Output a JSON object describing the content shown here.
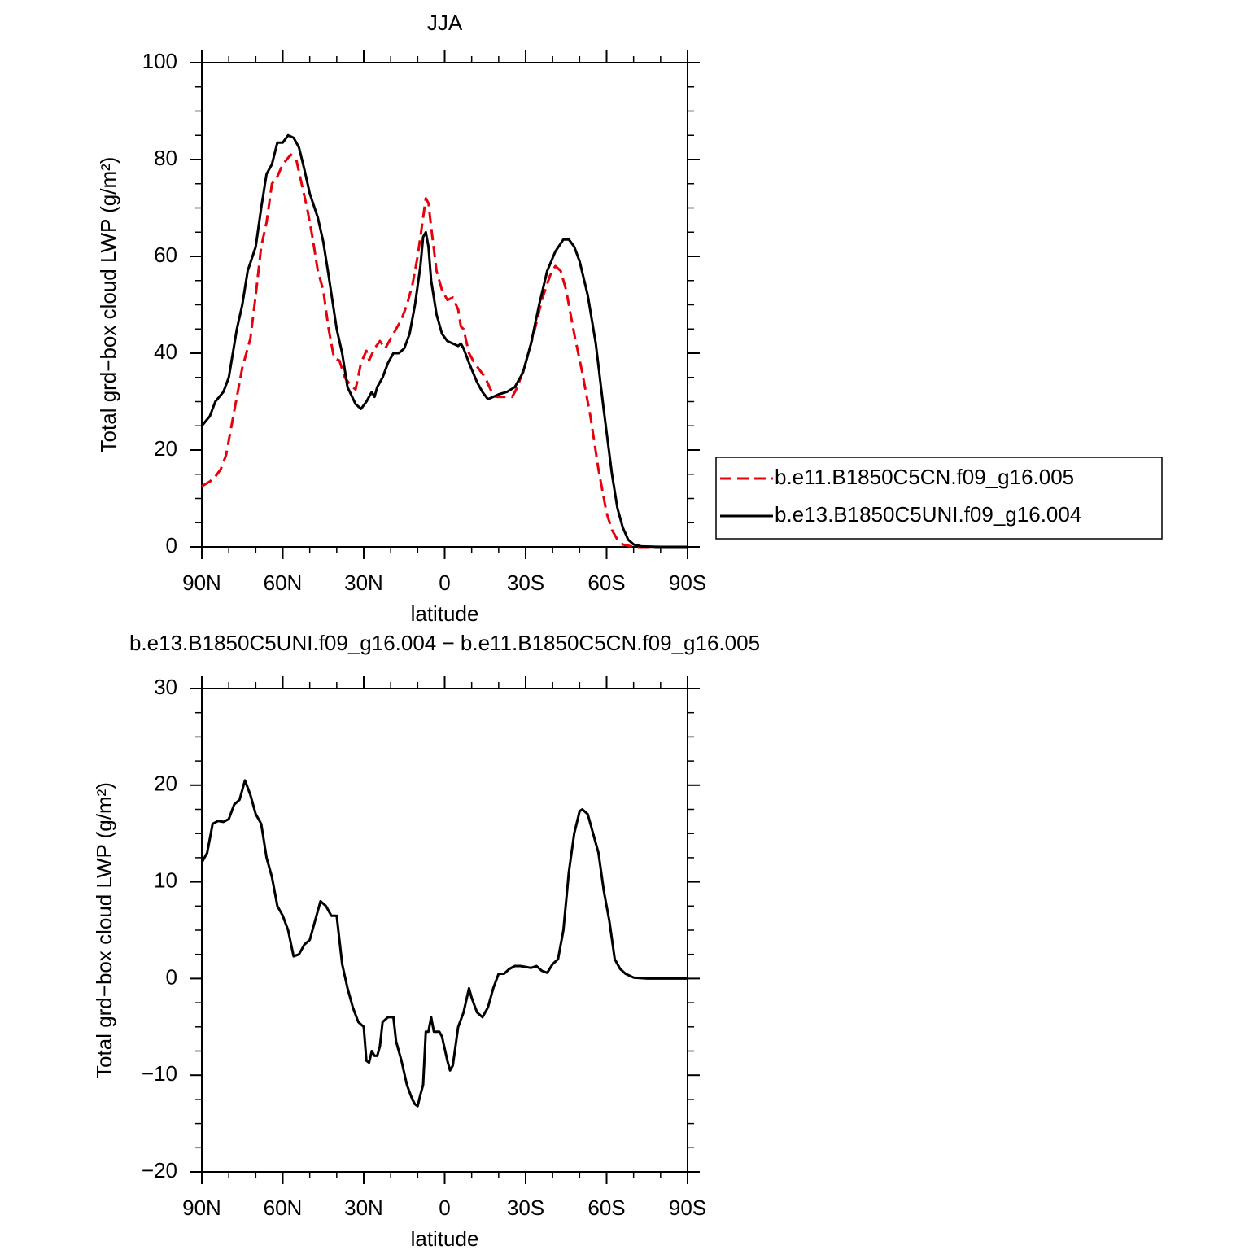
{
  "chart_data": [
    {
      "type": "line",
      "title": "JJA",
      "xlabel": "latitude",
      "ylabel": "Total grd−box cloud LWP (g/m²)",
      "xlim": [
        90,
        -90
      ],
      "xticks": [
        {
          "value": 90,
          "label": "90N"
        },
        {
          "value": 60,
          "label": "60N"
        },
        {
          "value": 30,
          "label": "30N"
        },
        0,
        {
          "value": -30,
          "label": "30S"
        },
        {
          "value": -60,
          "label": "60S"
        },
        {
          "value": -90,
          "label": "90S"
        }
      ],
      "ylim": [
        0,
        100
      ],
      "yticks": [
        0,
        20,
        40,
        60,
        80,
        100
      ],
      "legend": "right",
      "series": [
        {
          "name": "b.e11.B1850C5CN.f09_g16.005",
          "color": "#e8000b",
          "dash": true,
          "x": [
            90,
            87,
            85,
            83,
            81,
            79,
            77,
            75,
            72,
            70,
            68,
            66,
            64,
            62,
            60,
            57,
            55,
            53,
            51,
            49,
            47,
            45,
            43,
            41,
            39,
            37,
            35,
            33,
            31,
            29,
            28,
            26,
            24,
            22,
            20,
            18,
            16,
            14,
            12,
            10,
            8,
            7,
            6,
            5,
            3,
            1,
            -1,
            -3,
            -5,
            -6,
            -7,
            -9,
            -11,
            -13,
            -15,
            -17,
            -19,
            -22,
            -25,
            -27,
            -30,
            -33,
            -36,
            -39,
            -41,
            -43,
            -45,
            -48,
            -51,
            -54,
            -57,
            -60,
            -62,
            -64,
            -66,
            -70,
            -90
          ],
          "values": [
            12.5,
            13.5,
            14.5,
            16,
            19,
            25,
            31,
            37,
            43,
            52,
            62,
            67,
            75,
            76.5,
            79,
            81,
            80,
            75,
            70,
            64,
            57,
            53,
            45,
            39,
            38.5,
            35,
            33.5,
            32.5,
            38,
            40.5,
            38.5,
            41,
            42.5,
            41,
            43,
            45,
            47,
            50,
            54,
            60,
            68,
            72,
            71,
            66,
            57,
            53,
            51,
            51.5,
            49,
            45.5,
            45,
            40,
            38,
            36.5,
            35,
            32.5,
            31,
            31,
            31,
            33,
            38,
            44,
            51,
            56,
            58,
            57,
            53,
            44,
            36,
            27,
            16,
            7,
            3.5,
            1.5,
            0.5,
            0,
            0
          ]
        },
        {
          "name": "b.e13.B1850C5UNI.f09_g16.004",
          "color": "#000000",
          "dash": false,
          "x": [
            90,
            87,
            85,
            82,
            80,
            77,
            75,
            73,
            70,
            68,
            66,
            64,
            62,
            60,
            58,
            56,
            54,
            52,
            50,
            47,
            45,
            43,
            40,
            38,
            36,
            33,
            31,
            29,
            27,
            26,
            25,
            23,
            21,
            19,
            17,
            15,
            13,
            11,
            9,
            8,
            7,
            6,
            5,
            3,
            1,
            -1,
            -3,
            -5,
            -6,
            -7,
            -9,
            -12,
            -14,
            -16,
            -18,
            -20,
            -23,
            -26,
            -29,
            -32,
            -35,
            -38,
            -41,
            -44,
            -46,
            -48,
            -50,
            -53,
            -56,
            -59,
            -62,
            -64,
            -66,
            -68,
            -70,
            -73,
            -80,
            -90
          ],
          "values": [
            25,
            27,
            30,
            32,
            35,
            45,
            50,
            57,
            62,
            70,
            77,
            79,
            83.5,
            83.5,
            85,
            84.5,
            82.5,
            78,
            73,
            68,
            63,
            56,
            45,
            40,
            33,
            29.5,
            28.5,
            30,
            32,
            31,
            33,
            35,
            38,
            40,
            40,
            41,
            44,
            50,
            58,
            64,
            65,
            62,
            55,
            48,
            44,
            42.5,
            42,
            41.5,
            42,
            41,
            38,
            34,
            32,
            30.5,
            31,
            31.5,
            32,
            33,
            36,
            42,
            50,
            57,
            61,
            63.5,
            63.5,
            62,
            59,
            52,
            42,
            28,
            15,
            8,
            4,
            1.5,
            0.5,
            0.1,
            0,
            0
          ]
        }
      ]
    },
    {
      "type": "line",
      "title": "b.e13.B1850C5UNI.f09_g16.004 − b.e11.B1850C5CN.f09_g16.005",
      "xlabel": "latitude",
      "ylabel": "Total grd−box cloud LWP (g/m²)",
      "xlim": [
        90,
        -90
      ],
      "xticks": [
        {
          "value": 90,
          "label": "90N"
        },
        {
          "value": 60,
          "label": "60N"
        },
        {
          "value": 30,
          "label": "30N"
        },
        0,
        {
          "value": -30,
          "label": "30S"
        },
        {
          "value": -60,
          "label": "60S"
        },
        {
          "value": -90,
          "label": "90S"
        }
      ],
      "ylim": [
        -20,
        30
      ],
      "yticks": [
        {
          "value": -20,
          "label": "−20"
        },
        {
          "value": -10,
          "label": "−10"
        },
        0,
        10,
        20,
        30
      ],
      "series": [
        {
          "color": "#000000",
          "dash": false,
          "x": [
            90,
            88,
            86,
            84,
            82,
            80,
            78,
            76,
            74,
            72,
            70,
            68,
            66,
            64,
            62,
            60,
            58,
            56,
            54,
            52,
            50,
            48,
            46,
            44,
            42,
            40,
            38,
            36,
            34,
            32,
            30,
            29,
            28,
            27,
            26,
            25,
            24,
            23,
            21,
            19,
            18,
            16,
            14,
            12,
            11,
            10,
            9,
            8,
            7,
            6,
            5,
            4,
            2,
            1,
            -1,
            -2,
            -3,
            -5,
            -7,
            -9,
            -10,
            -12,
            -14,
            -16,
            -18,
            -20,
            -22,
            -24,
            -26,
            -28,
            -30,
            -32,
            -34,
            -36,
            -38,
            -40,
            -42,
            -44,
            -46,
            -48,
            -50,
            -51,
            -53,
            -55,
            -57,
            -59,
            -61,
            -63,
            -65,
            -67,
            -70,
            -75,
            -90
          ],
          "values": [
            12,
            13,
            16,
            16.3,
            16.2,
            16.5,
            18,
            18.5,
            20.5,
            19,
            17,
            16,
            12.5,
            10.5,
            7.5,
            6.5,
            5,
            2.3,
            2.5,
            3.5,
            4,
            6,
            8,
            7.5,
            6.5,
            6.5,
            1.5,
            -1,
            -3,
            -4.5,
            -5,
            -8.5,
            -8.7,
            -7.5,
            -8,
            -8,
            -7,
            -4.5,
            -4,
            -4,
            -6.5,
            -8.5,
            -11,
            -12.5,
            -13,
            -13.2,
            -12,
            -11,
            -5.5,
            -5.5,
            -4,
            -5.5,
            -5.5,
            -6,
            -8.5,
            -9.5,
            -9,
            -5,
            -3.5,
            -1,
            -2,
            -3.5,
            -4,
            -3,
            -1,
            0.5,
            0.5,
            1,
            1.3,
            1.3,
            1.2,
            1.1,
            1.3,
            0.8,
            0.6,
            1.5,
            2,
            5,
            11,
            15,
            17.3,
            17.5,
            17,
            15,
            13,
            9,
            6,
            2,
            1,
            0.5,
            0.1,
            0,
            0
          ]
        }
      ]
    }
  ]
}
